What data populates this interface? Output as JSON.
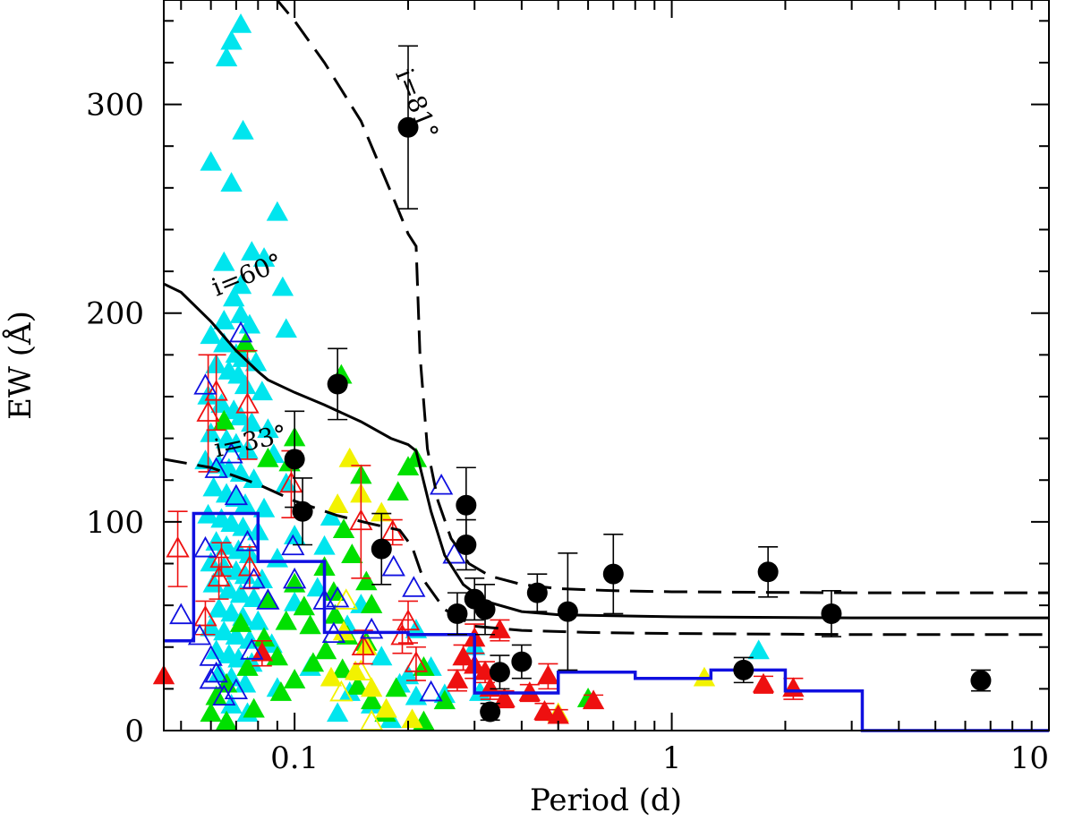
{
  "chart_data": {
    "type": "scatter",
    "xlabel": "Period (d)",
    "ylabel": "EW (Å)",
    "x_scale": "log",
    "xlim": [
      0.045,
      10
    ],
    "ylim": [
      0,
      350
    ],
    "x_ticks": [
      {
        "value": 0.1,
        "label": "0.1"
      },
      {
        "value": 1,
        "label": "1"
      },
      {
        "value": 10,
        "label": "10"
      }
    ],
    "y_ticks": [
      {
        "value": 0,
        "label": "0"
      },
      {
        "value": 100,
        "label": "100"
      },
      {
        "value": 200,
        "label": "200"
      },
      {
        "value": 300,
        "label": "300"
      }
    ],
    "colors": {
      "cyan": "#00e5ee",
      "green": "#00e000",
      "yellow": "#f2f200",
      "red": "#ee1010",
      "blue": "#1010e0",
      "black": "#000000",
      "hist": "#1010e0"
    },
    "curve_labels": [
      {
        "text": "i=81°",
        "x": 0.185,
        "y": 315
      },
      {
        "text": "i=60°",
        "x": 0.062,
        "y": 208
      },
      {
        "text": "i=33°",
        "x": 0.062,
        "y": 131
      }
    ],
    "curves": [
      {
        "label": "i=81°",
        "style": "dashed",
        "points": [
          [
            0.088,
            352
          ],
          [
            0.1,
            340
          ],
          [
            0.12,
            320
          ],
          [
            0.15,
            292
          ],
          [
            0.18,
            258
          ],
          [
            0.2,
            238
          ],
          [
            0.21,
            232
          ],
          [
            0.215,
            180
          ],
          [
            0.225,
            135
          ],
          [
            0.24,
            110
          ],
          [
            0.26,
            92
          ],
          [
            0.29,
            80
          ],
          [
            0.33,
            74
          ],
          [
            0.4,
            70
          ],
          [
            0.5,
            68
          ],
          [
            0.7,
            67
          ],
          [
            1,
            66.5
          ],
          [
            3,
            66
          ],
          [
            10,
            66
          ]
        ]
      },
      {
        "label": "i=60°",
        "style": "solid",
        "points": [
          [
            0.045,
            214
          ],
          [
            0.05,
            210
          ],
          [
            0.06,
            196
          ],
          [
            0.07,
            182
          ],
          [
            0.08,
            172
          ],
          [
            0.085,
            168
          ],
          [
            0.1,
            162
          ],
          [
            0.12,
            156
          ],
          [
            0.15,
            148
          ],
          [
            0.18,
            140
          ],
          [
            0.2,
            137
          ],
          [
            0.21,
            134
          ],
          [
            0.23,
            105
          ],
          [
            0.25,
            84
          ],
          [
            0.28,
            70
          ],
          [
            0.32,
            62
          ],
          [
            0.4,
            57
          ],
          [
            0.5,
            55.5
          ],
          [
            0.7,
            55
          ],
          [
            1,
            54.5
          ],
          [
            3,
            54
          ],
          [
            10,
            54
          ]
        ]
      },
      {
        "label": "i=33°",
        "style": "dashed",
        "points": [
          [
            0.045,
            130
          ],
          [
            0.06,
            126
          ],
          [
            0.08,
            118
          ],
          [
            0.1,
            110
          ],
          [
            0.13,
            103
          ],
          [
            0.16,
            99
          ],
          [
            0.19,
            96
          ],
          [
            0.205,
            88
          ],
          [
            0.22,
            72
          ],
          [
            0.25,
            58
          ],
          [
            0.3,
            50
          ],
          [
            0.4,
            48
          ],
          [
            0.6,
            47
          ],
          [
            1,
            46.5
          ],
          [
            3,
            46
          ],
          [
            10,
            46
          ]
        ]
      }
    ],
    "histogram": [
      [
        0.045,
        43
      ],
      [
        0.054,
        43
      ],
      [
        0.054,
        104
      ],
      [
        0.08,
        104
      ],
      [
        0.08,
        81
      ],
      [
        0.12,
        81
      ],
      [
        0.12,
        47
      ],
      [
        0.2,
        47
      ],
      [
        0.2,
        46
      ],
      [
        0.3,
        46
      ],
      [
        0.3,
        18
      ],
      [
        0.5,
        18
      ],
      [
        0.5,
        28
      ],
      [
        0.8,
        28
      ],
      [
        0.8,
        25
      ],
      [
        1.27,
        25
      ],
      [
        1.27,
        29
      ],
      [
        2,
        29
      ],
      [
        2,
        19
      ],
      [
        3.2,
        19
      ],
      [
        3.2,
        0
      ],
      [
        10,
        0
      ]
    ],
    "black_points": [
      {
        "x": 0.2,
        "y": 289,
        "err": 39
      },
      {
        "x": 0.13,
        "y": 166,
        "err": 17
      },
      {
        "x": 0.1,
        "y": 130,
        "err": 23
      },
      {
        "x": 0.105,
        "y": 105,
        "err": 16
      },
      {
        "x": 0.17,
        "y": 87,
        "err": 17
      },
      {
        "x": 0.285,
        "y": 108,
        "err": 18
      },
      {
        "x": 0.285,
        "y": 89,
        "err": 12
      },
      {
        "x": 0.27,
        "y": 56,
        "err": 10
      },
      {
        "x": 0.3,
        "y": 63,
        "err": 10
      },
      {
        "x": 0.32,
        "y": 58,
        "err": 12
      },
      {
        "x": 0.33,
        "y": 9,
        "err": 4
      },
      {
        "x": 0.35,
        "y": 28,
        "err": 8
      },
      {
        "x": 0.4,
        "y": 33,
        "err": 8
      },
      {
        "x": 0.44,
        "y": 66,
        "err": 9
      },
      {
        "x": 0.53,
        "y": 57,
        "err": 28
      },
      {
        "x": 0.7,
        "y": 75,
        "err": 19
      },
      {
        "x": 1.55,
        "y": 29,
        "err": 6
      },
      {
        "x": 1.8,
        "y": 76,
        "err": 12
      },
      {
        "x": 2.65,
        "y": 56,
        "err": 11
      },
      {
        "x": 6.6,
        "y": 24,
        "err": 5
      }
    ],
    "cyan_points": [
      [
        0.068,
        330
      ],
      [
        0.066,
        322
      ],
      [
        0.072,
        338
      ],
      [
        0.073,
        287
      ],
      [
        0.06,
        272
      ],
      [
        0.068,
        262
      ],
      [
        0.09,
        248
      ],
      [
        0.077,
        229
      ],
      [
        0.083,
        226
      ],
      [
        0.065,
        224
      ],
      [
        0.072,
        213
      ],
      [
        0.093,
        212
      ],
      [
        0.069,
        207
      ],
      [
        0.072,
        199
      ],
      [
        0.065,
        196
      ],
      [
        0.076,
        194
      ],
      [
        0.095,
        192
      ],
      [
        0.06,
        189
      ],
      [
        0.065,
        185
      ],
      [
        0.07,
        180
      ],
      [
        0.073,
        178
      ],
      [
        0.079,
        176
      ],
      [
        0.062,
        175
      ],
      [
        0.067,
        172
      ],
      [
        0.071,
        170
      ],
      [
        0.074,
        165
      ],
      [
        0.082,
        162
      ],
      [
        0.059,
        160
      ],
      [
        0.064,
        156
      ],
      [
        0.069,
        153
      ],
      [
        0.072,
        150
      ],
      [
        0.077,
        147
      ],
      [
        0.085,
        144
      ],
      [
        0.06,
        142
      ],
      [
        0.066,
        139
      ],
      [
        0.07,
        137
      ],
      [
        0.075,
        134
      ],
      [
        0.088,
        132
      ],
      [
        0.058,
        129
      ],
      [
        0.063,
        127
      ],
      [
        0.067,
        125
      ],
      [
        0.072,
        123
      ],
      [
        0.078,
        120
      ],
      [
        0.095,
        118
      ],
      [
        0.061,
        116
      ],
      [
        0.066,
        113
      ],
      [
        0.07,
        111
      ],
      [
        0.074,
        108
      ],
      [
        0.083,
        106
      ],
      [
        0.059,
        103
      ],
      [
        0.064,
        101
      ],
      [
        0.068,
        99
      ],
      [
        0.073,
        97
      ],
      [
        0.08,
        95
      ],
      [
        0.1,
        93
      ],
      [
        0.062,
        90
      ],
      [
        0.066,
        88
      ],
      [
        0.071,
        86
      ],
      [
        0.076,
        84
      ],
      [
        0.09,
        82
      ],
      [
        0.06,
        80
      ],
      [
        0.065,
        78
      ],
      [
        0.07,
        76
      ],
      [
        0.074,
        74
      ],
      [
        0.082,
        72
      ],
      [
        0.061,
        70
      ],
      [
        0.067,
        67
      ],
      [
        0.072,
        65
      ],
      [
        0.078,
        63
      ],
      [
        0.1,
        61
      ],
      [
        0.063,
        58
      ],
      [
        0.068,
        56
      ],
      [
        0.073,
        54
      ],
      [
        0.08,
        52
      ],
      [
        0.06,
        49
      ],
      [
        0.065,
        47
      ],
      [
        0.07,
        45
      ],
      [
        0.076,
        43
      ],
      [
        0.087,
        41
      ],
      [
        0.062,
        38
      ],
      [
        0.067,
        36
      ],
      [
        0.071,
        34
      ],
      [
        0.077,
        32
      ],
      [
        0.11,
        30
      ],
      [
        0.063,
        27
      ],
      [
        0.068,
        25
      ],
      [
        0.074,
        22
      ],
      [
        0.09,
        20
      ],
      [
        0.14,
        18
      ],
      [
        0.16,
        12
      ],
      [
        0.21,
        16
      ],
      [
        0.19,
        22
      ],
      [
        0.17,
        35
      ],
      [
        0.23,
        30
      ],
      [
        0.25,
        17
      ],
      [
        0.2,
        26
      ],
      [
        0.15,
        60
      ],
      [
        0.115,
        68
      ],
      [
        0.12,
        88
      ],
      [
        0.125,
        102
      ],
      [
        0.138,
        50
      ],
      [
        0.21,
        48
      ],
      [
        0.3,
        40
      ],
      [
        0.31,
        18
      ],
      [
        1.7,
        38
      ],
      [
        0.068,
        12
      ],
      [
        0.075,
        8
      ],
      [
        0.13,
        8
      ],
      [
        0.18,
        5
      ]
    ],
    "green_points": [
      [
        0.133,
        170
      ],
      [
        0.074,
        185
      ],
      [
        0.065,
        148
      ],
      [
        0.085,
        130
      ],
      [
        0.097,
        128
      ],
      [
        0.1,
        140
      ],
      [
        0.15,
        122
      ],
      [
        0.2,
        126
      ],
      [
        0.188,
        114
      ],
      [
        0.21,
        130
      ],
      [
        0.135,
        96
      ],
      [
        0.142,
        84
      ],
      [
        0.12,
        78
      ],
      [
        0.127,
        66
      ],
      [
        0.155,
        71
      ],
      [
        0.16,
        60
      ],
      [
        0.1,
        70
      ],
      [
        0.095,
        52
      ],
      [
        0.11,
        50
      ],
      [
        0.083,
        44
      ],
      [
        0.09,
        35
      ],
      [
        0.075,
        30
      ],
      [
        0.066,
        22
      ],
      [
        0.062,
        16
      ],
      [
        0.06,
        8
      ],
      [
        0.066,
        4
      ],
      [
        0.078,
        10
      ],
      [
        0.092,
        18
      ],
      [
        0.1,
        24
      ],
      [
        0.112,
        32
      ],
      [
        0.121,
        38
      ],
      [
        0.134,
        29
      ],
      [
        0.147,
        21
      ],
      [
        0.16,
        14
      ],
      [
        0.174,
        8
      ],
      [
        0.155,
        42
      ],
      [
        0.138,
        45
      ],
      [
        0.128,
        55
      ],
      [
        0.106,
        59
      ],
      [
        0.085,
        62
      ],
      [
        0.072,
        51
      ],
      [
        0.186,
        20
      ],
      [
        0.22,
        30
      ],
      [
        0.25,
        14
      ],
      [
        0.22,
        4
      ],
      [
        0.6,
        15
      ]
    ],
    "yellow_points": [
      [
        0.14,
        130
      ],
      [
        0.15,
        113
      ],
      [
        0.13,
        108
      ],
      [
        0.17,
        104
      ],
      [
        0.135,
        47
      ],
      [
        0.155,
        40
      ],
      [
        0.145,
        28
      ],
      [
        0.16,
        20
      ],
      [
        0.175,
        10
      ],
      [
        0.125,
        25
      ],
      [
        0.205,
        5
      ],
      [
        0.5,
        8
      ],
      [
        1.22,
        25
      ]
    ],
    "red_filled": [
      {
        "x": 0.045,
        "y": 26,
        "err": 0
      },
      {
        "x": 0.082,
        "y": 37,
        "err": 6
      },
      {
        "x": 0.3,
        "y": 44,
        "err": 7
      },
      {
        "x": 0.28,
        "y": 35,
        "err": 6
      },
      {
        "x": 0.3,
        "y": 31,
        "err": 6
      },
      {
        "x": 0.32,
        "y": 28,
        "err": 5
      },
      {
        "x": 0.27,
        "y": 24,
        "err": 5
      },
      {
        "x": 0.33,
        "y": 20,
        "err": 5
      },
      {
        "x": 0.35,
        "y": 48,
        "err": 5
      },
      {
        "x": 0.36,
        "y": 15,
        "err": 4
      },
      {
        "x": 0.42,
        "y": 18,
        "err": 4
      },
      {
        "x": 0.47,
        "y": 26,
        "err": 6
      },
      {
        "x": 0.46,
        "y": 9,
        "err": 4
      },
      {
        "x": 0.5,
        "y": 7,
        "err": 3
      },
      {
        "x": 0.62,
        "y": 14,
        "err": 3
      },
      {
        "x": 1.75,
        "y": 22,
        "err": 4
      },
      {
        "x": 2.1,
        "y": 20,
        "err": 5
      }
    ],
    "red_open": [
      {
        "x": 0.049,
        "y": 87,
        "err": 18
      },
      {
        "x": 0.059,
        "y": 152,
        "err": 28
      },
      {
        "x": 0.062,
        "y": 162,
        "err": 18
      },
      {
        "x": 0.075,
        "y": 156,
        "err": 26
      },
      {
        "x": 0.058,
        "y": 54,
        "err": 8
      },
      {
        "x": 0.063,
        "y": 73,
        "err": 10
      },
      {
        "x": 0.064,
        "y": 82,
        "err": 8
      },
      {
        "x": 0.076,
        "y": 78,
        "err": 10
      },
      {
        "x": 0.098,
        "y": 118,
        "err": 16
      },
      {
        "x": 0.15,
        "y": 100,
        "err": 27
      },
      {
        "x": 0.182,
        "y": 95,
        "err": 6
      },
      {
        "x": 0.2,
        "y": 52,
        "err": 10
      },
      {
        "x": 0.21,
        "y": 32,
        "err": 8
      },
      {
        "x": 0.152,
        "y": 40,
        "err": 8
      },
      {
        "x": 0.193,
        "y": 45,
        "err": 8
      }
    ],
    "blue_open": [
      {
        "x": 0.072,
        "y": 190
      },
      {
        "x": 0.058,
        "y": 165
      },
      {
        "x": 0.062,
        "y": 125
      },
      {
        "x": 0.07,
        "y": 112
      },
      {
        "x": 0.068,
        "y": 132
      },
      {
        "x": 0.05,
        "y": 55
      },
      {
        "x": 0.058,
        "y": 87
      },
      {
        "x": 0.056,
        "y": 45
      },
      {
        "x": 0.06,
        "y": 35
      },
      {
        "x": 0.06,
        "y": 24
      },
      {
        "x": 0.065,
        "y": 16
      },
      {
        "x": 0.07,
        "y": 19
      },
      {
        "x": 0.062,
        "y": 27
      },
      {
        "x": 0.077,
        "y": 38
      },
      {
        "x": 0.078,
        "y": 72
      },
      {
        "x": 0.075,
        "y": 90
      },
      {
        "x": 0.085,
        "y": 62
      },
      {
        "x": 0.1,
        "y": 72
      },
      {
        "x": 0.099,
        "y": 88
      },
      {
        "x": 0.13,
        "y": 63
      },
      {
        "x": 0.127,
        "y": 46
      },
      {
        "x": 0.16,
        "y": 48
      },
      {
        "x": 0.183,
        "y": 78
      },
      {
        "x": 0.207,
        "y": 68
      },
      {
        "x": 0.245,
        "y": 117
      },
      {
        "x": 0.265,
        "y": 84
      },
      {
        "x": 0.23,
        "y": 18
      },
      {
        "x": 0.12,
        "y": 62
      }
    ],
    "yellow_open": [
      {
        "x": 0.137,
        "y": 62
      },
      {
        "x": 0.133,
        "y": 18
      },
      {
        "x": 0.16,
        "y": 4
      },
      {
        "x": 0.15,
        "y": 28
      }
    ]
  }
}
